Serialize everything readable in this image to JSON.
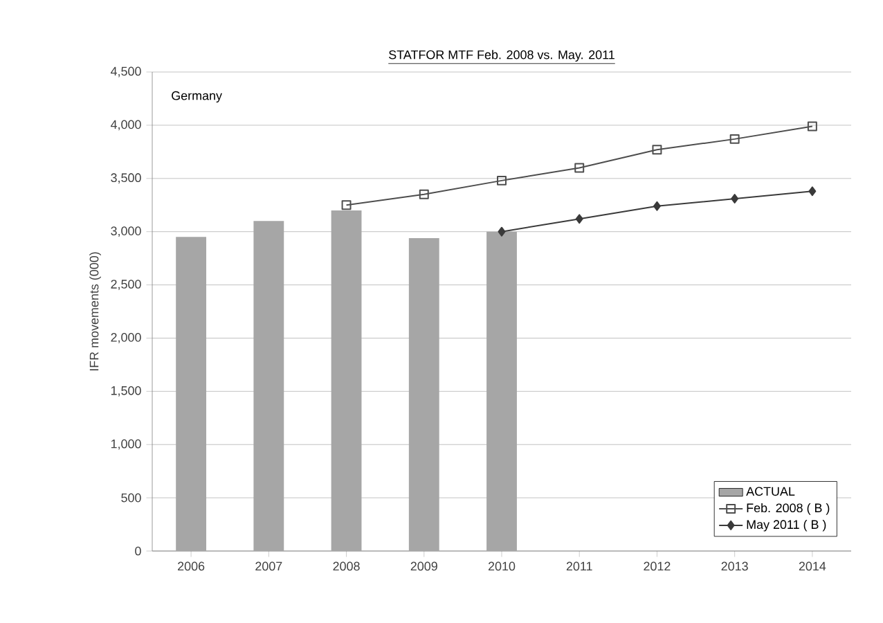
{
  "chart_data": {
    "type": "bar",
    "title": "STATFOR MTF Feb. 2008 vs. May. 2011",
    "ylabel": "IFR movements (000)",
    "annotations": [
      "Germany"
    ],
    "categories": [
      "2006",
      "2007",
      "2008",
      "2009",
      "2010",
      "2011",
      "2012",
      "2013",
      "2014"
    ],
    "series": [
      {
        "name": "ACTUAL",
        "color": "#a6a6a6",
        "values": [
          2950,
          3100,
          3200,
          2940,
          3000,
          null,
          null,
          null,
          null
        ]
      },
      {
        "name": "Feb. 2008 ( B )",
        "type": "line",
        "marker": "square",
        "color": "#4d4d4d",
        "values": [
          null,
          null,
          3250,
          3350,
          3480,
          3600,
          3770,
          3870,
          3990
        ]
      },
      {
        "name": "May 2011 ( B )",
        "type": "line",
        "marker": "diamond",
        "color": "#3a3a3a",
        "values": [
          null,
          null,
          null,
          null,
          3000,
          3120,
          3240,
          3310,
          3380
        ]
      }
    ],
    "ylim": [
      0,
      4500
    ],
    "yticks": [
      0,
      500,
      {
        "value": 1000,
        "label": "1,000"
      },
      {
        "value": 1500,
        "label": "1,500"
      },
      {
        "value": 2000,
        "label": "2,000"
      },
      {
        "value": 2500,
        "label": "2,500"
      },
      {
        "value": 3000,
        "label": "3,000"
      },
      {
        "value": 3500,
        "label": "3,500"
      },
      {
        "value": 4000,
        "label": "4,000"
      },
      {
        "value": 4500,
        "label": "4,500"
      }
    ],
    "grid": "y",
    "legend": "bottom right",
    "line_style": "solid"
  }
}
